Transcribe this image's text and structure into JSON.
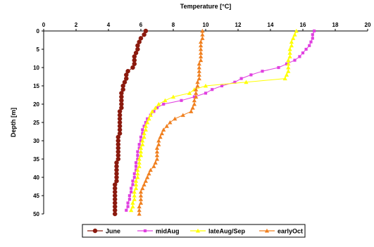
{
  "chart_data": {
    "type": "scatter",
    "xlabel": "Temperature [°C]",
    "ylabel": "Depth [m]",
    "xlim": [
      0,
      20
    ],
    "ylim": [
      0,
      50
    ],
    "y_inverted": true,
    "x_axis_position": "top",
    "xticks": [
      0,
      2,
      4,
      6,
      8,
      10,
      12,
      14,
      16,
      18,
      20
    ],
    "yticks": [
      0,
      5,
      10,
      15,
      20,
      25,
      30,
      35,
      40,
      45,
      50
    ],
    "grid": false,
    "legend_position": "bottom",
    "series": [
      {
        "name": "June",
        "color": "#8B1A0E",
        "marker": "circle",
        "points": [
          [
            6.3,
            0
          ],
          [
            6.2,
            1
          ],
          [
            6.0,
            2
          ],
          [
            5.9,
            3
          ],
          [
            5.8,
            4
          ],
          [
            5.8,
            5
          ],
          [
            5.7,
            6
          ],
          [
            5.6,
            7
          ],
          [
            5.6,
            8
          ],
          [
            5.6,
            9
          ],
          [
            5.5,
            10
          ],
          [
            5.2,
            11
          ],
          [
            5.1,
            12
          ],
          [
            5.1,
            13
          ],
          [
            5.0,
            14
          ],
          [
            4.9,
            15
          ],
          [
            4.9,
            16
          ],
          [
            4.8,
            17
          ],
          [
            4.8,
            18
          ],
          [
            4.8,
            19
          ],
          [
            4.8,
            20
          ],
          [
            4.8,
            21
          ],
          [
            4.7,
            22
          ],
          [
            4.7,
            23
          ],
          [
            4.7,
            24
          ],
          [
            4.7,
            25
          ],
          [
            4.7,
            26
          ],
          [
            4.7,
            27
          ],
          [
            4.7,
            28
          ],
          [
            4.6,
            29
          ],
          [
            4.6,
            30
          ],
          [
            4.6,
            31
          ],
          [
            4.6,
            32
          ],
          [
            4.6,
            33
          ],
          [
            4.6,
            34
          ],
          [
            4.6,
            35
          ],
          [
            4.5,
            36
          ],
          [
            4.5,
            37
          ],
          [
            4.5,
            38
          ],
          [
            4.5,
            39
          ],
          [
            4.5,
            40
          ],
          [
            4.5,
            41
          ],
          [
            4.4,
            42
          ],
          [
            4.4,
            43
          ],
          [
            4.4,
            44
          ],
          [
            4.4,
            45
          ],
          [
            4.4,
            46
          ],
          [
            4.4,
            47
          ],
          [
            4.4,
            48
          ],
          [
            4.4,
            49
          ],
          [
            4.4,
            50
          ]
        ]
      },
      {
        "name": "midAug",
        "color": "#E040E0",
        "marker": "square",
        "points": [
          [
            16.7,
            0
          ],
          [
            16.6,
            1
          ],
          [
            16.6,
            2
          ],
          [
            16.5,
            3
          ],
          [
            16.4,
            4
          ],
          [
            16.2,
            5
          ],
          [
            16.0,
            6
          ],
          [
            15.8,
            7
          ],
          [
            15.5,
            8
          ],
          [
            15.0,
            9
          ],
          [
            14.5,
            10
          ],
          [
            13.5,
            11
          ],
          [
            12.8,
            12
          ],
          [
            12.2,
            13
          ],
          [
            11.8,
            14
          ],
          [
            11.0,
            15
          ],
          [
            10.4,
            16
          ],
          [
            10.0,
            17
          ],
          [
            9.3,
            18
          ],
          [
            8.5,
            19
          ],
          [
            7.4,
            20
          ],
          [
            7.0,
            21
          ],
          [
            6.8,
            22
          ],
          [
            6.6,
            23
          ],
          [
            6.4,
            24
          ],
          [
            6.3,
            25
          ],
          [
            6.2,
            26
          ],
          [
            6.1,
            27
          ],
          [
            6.1,
            28
          ],
          [
            6.0,
            29
          ],
          [
            6.0,
            30
          ],
          [
            5.9,
            31
          ],
          [
            5.9,
            32
          ],
          [
            5.8,
            33
          ],
          [
            5.8,
            34
          ],
          [
            5.8,
            35
          ],
          [
            5.7,
            36
          ],
          [
            5.7,
            37
          ],
          [
            5.7,
            38
          ],
          [
            5.6,
            39
          ],
          [
            5.6,
            40
          ],
          [
            5.5,
            41
          ],
          [
            5.5,
            42
          ],
          [
            5.4,
            43
          ],
          [
            5.4,
            44
          ],
          [
            5.3,
            45
          ],
          [
            5.3,
            46
          ],
          [
            5.2,
            47
          ],
          [
            5.2,
            48
          ],
          [
            5.1,
            49
          ]
        ]
      },
      {
        "name": "lateAug/Sep",
        "color": "#FFFF00",
        "marker": "triangle",
        "points": [
          [
            15.6,
            0
          ],
          [
            15.5,
            1
          ],
          [
            15.4,
            2
          ],
          [
            15.3,
            3
          ],
          [
            15.3,
            4
          ],
          [
            15.2,
            5
          ],
          [
            15.2,
            6
          ],
          [
            15.2,
            7
          ],
          [
            15.1,
            8
          ],
          [
            15.1,
            9
          ],
          [
            15.1,
            10
          ],
          [
            15.1,
            11
          ],
          [
            15.0,
            12
          ],
          [
            14.9,
            13
          ],
          [
            12.5,
            14
          ],
          [
            10.0,
            15
          ],
          [
            9.3,
            16
          ],
          [
            9.0,
            17
          ],
          [
            8.0,
            18
          ],
          [
            7.5,
            19
          ],
          [
            7.1,
            20
          ],
          [
            6.9,
            21
          ],
          [
            6.7,
            22
          ],
          [
            6.6,
            23
          ],
          [
            6.5,
            24
          ],
          [
            6.4,
            25
          ],
          [
            6.3,
            26
          ],
          [
            6.3,
            27
          ],
          [
            6.2,
            28
          ],
          [
            6.2,
            29
          ],
          [
            6.1,
            30
          ],
          [
            6.1,
            31
          ],
          [
            6.0,
            32
          ],
          [
            6.0,
            33
          ],
          [
            6.0,
            34
          ],
          [
            5.9,
            35
          ],
          [
            5.9,
            36
          ],
          [
            5.9,
            37
          ],
          [
            5.8,
            38
          ],
          [
            5.8,
            39
          ],
          [
            5.8,
            40
          ],
          [
            5.7,
            41
          ],
          [
            5.7,
            42
          ],
          [
            5.7,
            43
          ],
          [
            5.6,
            44
          ],
          [
            5.6,
            45
          ],
          [
            5.6,
            46
          ],
          [
            5.5,
            47
          ],
          [
            5.5,
            48
          ],
          [
            5.4,
            49
          ]
        ]
      },
      {
        "name": "earlyOct",
        "color": "#F08020",
        "marker": "triangle",
        "points": [
          [
            9.8,
            0
          ],
          [
            9.8,
            1
          ],
          [
            9.8,
            2
          ],
          [
            9.7,
            3
          ],
          [
            9.7,
            4
          ],
          [
            9.7,
            5
          ],
          [
            9.7,
            6
          ],
          [
            9.7,
            7
          ],
          [
            9.7,
            8
          ],
          [
            9.6,
            9
          ],
          [
            9.6,
            10
          ],
          [
            9.6,
            11
          ],
          [
            9.6,
            12
          ],
          [
            9.6,
            13
          ],
          [
            9.5,
            14
          ],
          [
            9.5,
            15
          ],
          [
            9.4,
            16
          ],
          [
            9.4,
            17
          ],
          [
            9.4,
            18
          ],
          [
            9.3,
            19
          ],
          [
            9.3,
            20
          ],
          [
            9.2,
            21
          ],
          [
            9.1,
            22
          ],
          [
            8.6,
            23
          ],
          [
            8.1,
            24
          ],
          [
            7.8,
            25
          ],
          [
            7.6,
            26
          ],
          [
            7.4,
            27
          ],
          [
            7.3,
            28
          ],
          [
            7.2,
            29
          ],
          [
            7.1,
            30
          ],
          [
            7.1,
            31
          ],
          [
            7.0,
            32
          ],
          [
            7.0,
            33
          ],
          [
            7.0,
            34
          ],
          [
            7.0,
            35
          ],
          [
            6.9,
            36
          ],
          [
            6.8,
            37
          ],
          [
            6.6,
            38
          ],
          [
            6.5,
            39
          ],
          [
            6.4,
            40
          ],
          [
            6.3,
            41
          ],
          [
            6.2,
            42
          ],
          [
            6.1,
            43
          ],
          [
            6.0,
            44
          ],
          [
            6.0,
            45
          ],
          [
            6.0,
            46
          ],
          [
            6.0,
            47
          ],
          [
            5.9,
            48
          ],
          [
            5.9,
            49
          ],
          [
            5.9,
            50
          ]
        ]
      }
    ]
  }
}
